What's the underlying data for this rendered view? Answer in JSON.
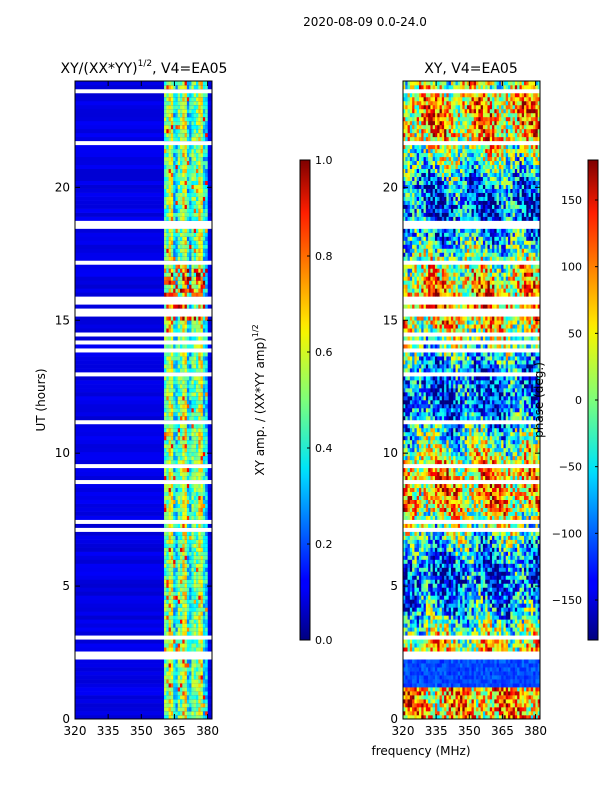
{
  "figure_title": "2020-08-09 0.0-24.0",
  "shared_xlabel": "frequency (MHz)",
  "chart_data": [
    {
      "type": "heatmap",
      "title_main": "XY/(XX*YY)",
      "title_sup": "1/2",
      "title_tail": ", V4=EA05",
      "ylabel": "UT (hours)",
      "xlabel": "frequency (MHz)",
      "xlim": [
        320,
        382
      ],
      "ylim": [
        0,
        24
      ],
      "xticks": [
        320,
        335,
        350,
        365,
        380
      ],
      "yticks": [
        0,
        5,
        10,
        15,
        20
      ],
      "grid": false,
      "active_band_mhz": [
        360,
        380
      ],
      "colorbar": {
        "label_main": "XY amp. / (XX*YY amp)",
        "label_sup": "1/2",
        "colormap": "jet",
        "range": [
          0.0,
          1.0
        ],
        "ticks": [
          "0.0",
          "0.2",
          "0.4",
          "0.6",
          "0.8",
          "1.0"
        ],
        "tick_values": [
          0.0,
          0.2,
          0.4,
          0.6,
          0.8,
          1.0
        ]
      }
    },
    {
      "type": "heatmap",
      "title": "XY, V4=EA05",
      "ylabel": "",
      "xlabel": "frequency (MHz)",
      "xlim": [
        320,
        382
      ],
      "ylim": [
        0,
        24
      ],
      "xticks": [
        320,
        335,
        350,
        365,
        380
      ],
      "yticks": [
        0,
        5,
        10,
        15,
        20
      ],
      "grid": false,
      "colorbar": {
        "label": "phase (deg.)",
        "colormap": "jet",
        "range": [
          -180,
          180
        ],
        "ticks": [
          "−150",
          "−100",
          "−50",
          "0",
          "50",
          "100",
          "150"
        ],
        "tick_values": [
          -150,
          -100,
          -50,
          0,
          50,
          100,
          150
        ]
      }
    }
  ]
}
